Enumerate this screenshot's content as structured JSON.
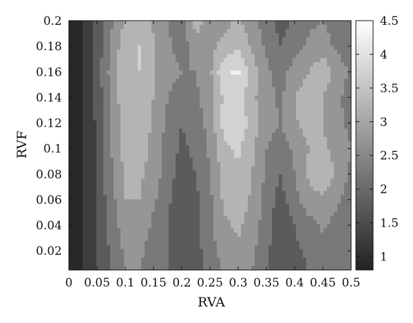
{
  "chart_data": {
    "type": "heatmap",
    "title": "",
    "xlabel": "RVA",
    "ylabel": "RVF",
    "xlim": [
      0,
      0.5
    ],
    "ylim": [
      0.005,
      0.2
    ],
    "x_ticks": [
      "0",
      "0.05",
      "0.1",
      "0.15",
      "0.2",
      "0.25",
      "0.3",
      "0.35",
      "0.4",
      "0.45",
      "0.5"
    ],
    "y_ticks": [
      "0.02",
      "0.04",
      "0.06",
      "0.08",
      "0.1",
      "0.12",
      "0.14",
      "0.16",
      "0.18",
      "0.2"
    ],
    "colorbar": {
      "range": [
        0.8,
        4.5
      ],
      "ticks": [
        "1",
        "1.5",
        "2",
        "2.5",
        "3",
        "3.5",
        "4",
        "4.5"
      ],
      "color_low": "#222222",
      "color_high": "#ffffff"
    },
    "contour_levels": [
      1,
      1.5,
      2,
      2.5,
      3,
      3.5,
      4
    ],
    "x": [
      0,
      0.025,
      0.05,
      0.075,
      0.1,
      0.125,
      0.15,
      0.175,
      0.2,
      0.225,
      0.25,
      0.275,
      0.3,
      0.325,
      0.35,
      0.375,
      0.4,
      0.425,
      0.45,
      0.475,
      0.5
    ],
    "y": [
      0.005,
      0.02,
      0.04,
      0.06,
      0.08,
      0.1,
      0.12,
      0.14,
      0.16,
      0.18,
      0.2
    ],
    "z": [
      [
        0.9,
        1.0,
        1.5,
        2.0,
        2.5,
        2.5,
        2.2,
        2.0,
        1.6,
        1.8,
        2.2,
        2.6,
        2.8,
        2.5,
        2.0,
        1.6,
        1.8,
        2.0,
        2.2,
        2.0,
        2.0
      ],
      [
        0.9,
        1.0,
        1.5,
        2.1,
        2.6,
        2.6,
        2.3,
        2.0,
        1.7,
        1.8,
        2.3,
        2.7,
        2.9,
        2.6,
        2.1,
        1.7,
        1.9,
        2.1,
        2.3,
        2.1,
        2.0
      ],
      [
        0.9,
        1.0,
        1.5,
        2.2,
        2.8,
        2.8,
        2.4,
        2.0,
        1.6,
        1.8,
        2.4,
        2.9,
        3.1,
        2.8,
        2.2,
        1.6,
        2.0,
        2.3,
        2.6,
        2.3,
        2.1
      ],
      [
        0.9,
        1.0,
        1.6,
        2.3,
        3.0,
        3.0,
        2.6,
        2.1,
        1.7,
        1.9,
        2.4,
        3.1,
        3.3,
        2.9,
        2.3,
        1.8,
        2.3,
        2.8,
        2.9,
        2.6,
        2.2
      ],
      [
        0.9,
        1.0,
        1.6,
        2.4,
        3.1,
        3.1,
        2.8,
        2.2,
        1.8,
        2.0,
        2.5,
        3.2,
        3.4,
        3.0,
        2.4,
        2.0,
        2.5,
        3.1,
        3.4,
        2.9,
        2.4
      ],
      [
        0.9,
        1.0,
        1.6,
        2.5,
        3.2,
        3.3,
        2.8,
        2.3,
        1.9,
        2.1,
        2.6,
        3.4,
        3.6,
        3.1,
        2.5,
        2.2,
        2.6,
        3.0,
        3.1,
        2.8,
        2.5
      ],
      [
        0.9,
        1.0,
        1.6,
        2.5,
        3.3,
        3.4,
        2.9,
        2.4,
        2.0,
        2.2,
        2.7,
        3.7,
        3.9,
        3.3,
        2.7,
        2.5,
        2.9,
        3.3,
        3.0,
        2.6,
        2.4
      ],
      [
        0.9,
        1.0,
        1.7,
        2.6,
        3.4,
        3.4,
        3.0,
        2.5,
        2.2,
        2.4,
        2.8,
        3.6,
        3.7,
        3.1,
        2.7,
        2.4,
        3.0,
        3.3,
        3.0,
        2.6,
        2.3
      ],
      [
        0.9,
        1.0,
        1.7,
        2.7,
        3.5,
        3.5,
        3.0,
        2.7,
        2.5,
        2.5,
        2.9,
        3.9,
        4.1,
        3.3,
        2.6,
        2.3,
        2.7,
        3.0,
        3.4,
        2.8,
        2.4
      ],
      [
        0.9,
        1.0,
        1.7,
        2.6,
        3.3,
        3.5,
        3.1,
        2.6,
        2.3,
        2.7,
        2.8,
        3.2,
        3.4,
        2.9,
        2.4,
        2.0,
        2.3,
        2.6,
        2.7,
        2.4,
        2.2
      ],
      [
        0.9,
        1.0,
        1.6,
        2.4,
        3.1,
        3.3,
        2.9,
        2.5,
        2.2,
        3.3,
        2.7,
        2.8,
        3.1,
        2.7,
        2.2,
        1.8,
        2.1,
        2.4,
        2.5,
        2.3,
        2.1
      ]
    ]
  }
}
